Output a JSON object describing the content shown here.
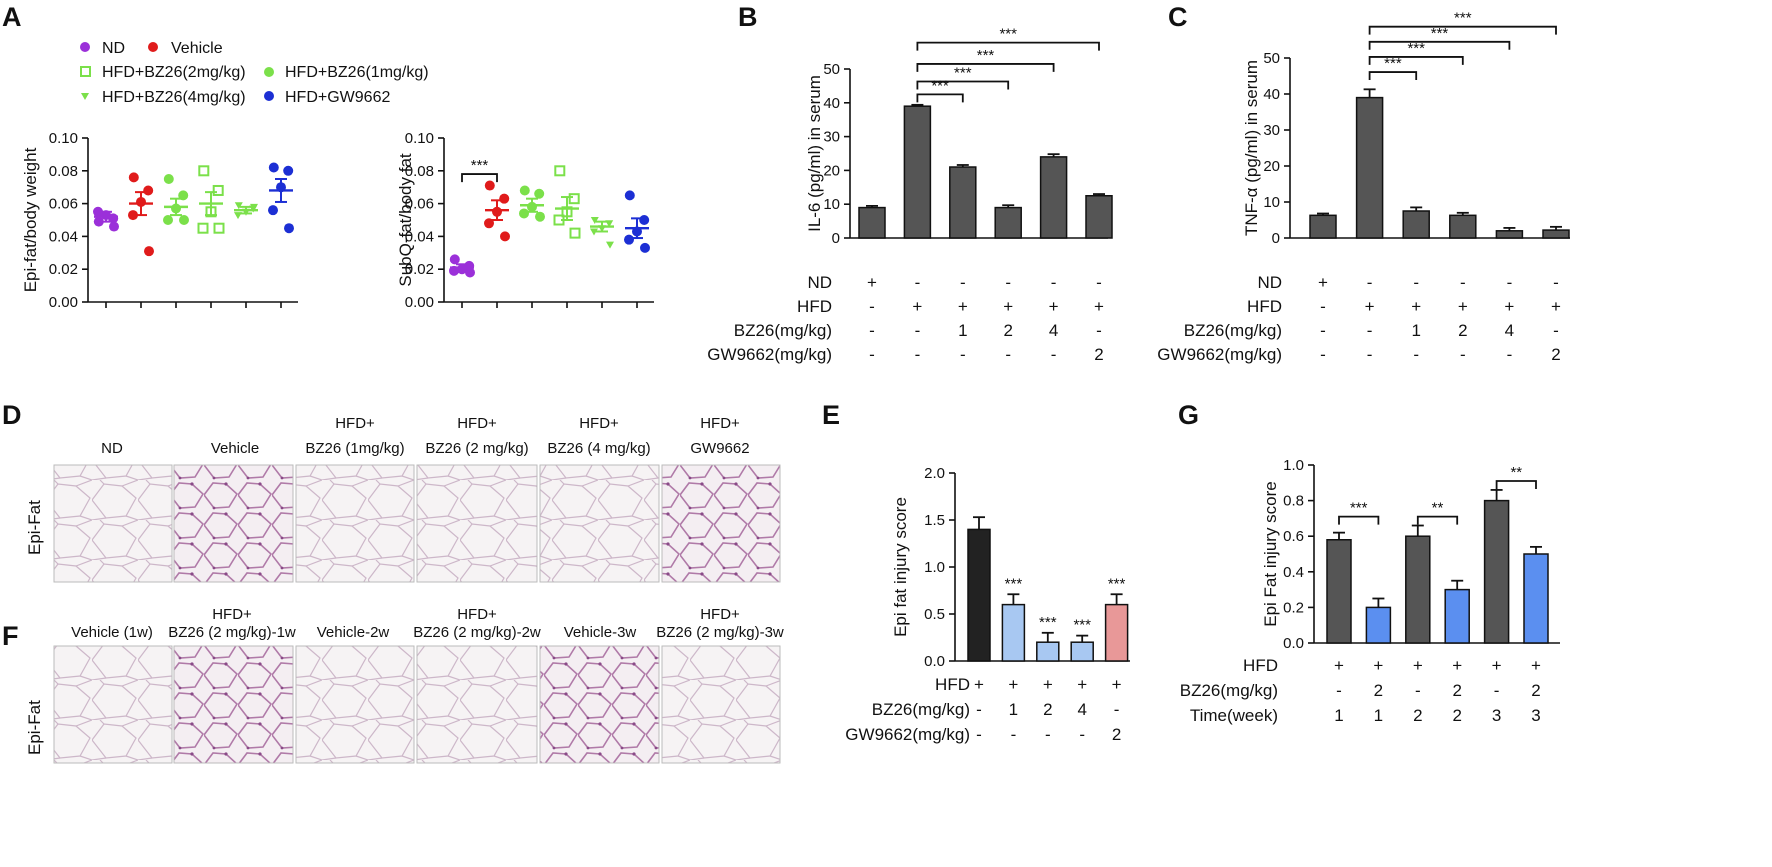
{
  "panel_labels": {
    "A": "A",
    "B": "B",
    "C": "C",
    "D": "D",
    "E": "E",
    "F": "F",
    "G": "G"
  },
  "legend": [
    {
      "label": "ND",
      "color": "#9b30d9",
      "marker": "circle"
    },
    {
      "label": "Vehicle",
      "color": "#e01b1b",
      "marker": "circle"
    },
    {
      "label": "HFD+BZ26(2mg/kg)",
      "color": "#7be04a",
      "marker": "square-open"
    },
    {
      "label": "HFD+BZ26(1mg/kg)",
      "color": "#7be04a",
      "marker": "circle"
    },
    {
      "label": "HFD+BZ26(4mg/kg)",
      "color": "#7be04a",
      "marker": "triangle-down"
    },
    {
      "label": "HFD+GW9662",
      "color": "#1c2fd4",
      "marker": "circle"
    }
  ],
  "histology_d": {
    "row_label": "Epi-Fat",
    "columns": [
      {
        "l1": "",
        "l2": "ND"
      },
      {
        "l1": "",
        "l2": "Vehicle"
      },
      {
        "l1": "HFD+",
        "l2": "BZ26 (1mg/kg)"
      },
      {
        "l1": "HFD+",
        "l2": "BZ26 (2 mg/kg)"
      },
      {
        "l1": "HFD+",
        "l2": "BZ26 (4 mg/kg)"
      },
      {
        "l1": "HFD+",
        "l2": "GW9662"
      }
    ]
  },
  "histology_f": {
    "row_label": "Epi-Fat",
    "columns": [
      {
        "l1": "",
        "l2": "Vehicle (1w)"
      },
      {
        "l1": "HFD+",
        "l2": "BZ26 (2 mg/kg)-1w"
      },
      {
        "l1": "",
        "l2": "Vehicle-2w"
      },
      {
        "l1": "HFD+",
        "l2": "BZ26 (2 mg/kg)-2w"
      },
      {
        "l1": "",
        "l2": "Vehicle-3w"
      },
      {
        "l1": "HFD+",
        "l2": "BZ26 (2 mg/kg)-3w"
      }
    ]
  },
  "chart_data": [
    {
      "id": "A1",
      "type": "scatter",
      "ylabel": "Epi-fat/body weight",
      "ylim": [
        0,
        0.1
      ],
      "yticks": [
        "0.00",
        "0.02",
        "0.04",
        "0.06",
        "0.08",
        "0.10"
      ],
      "groups": [
        {
          "color": "#9b30d9",
          "marker": "circle",
          "mean": 0.052,
          "sem": 0.003,
          "points": [
            0.049,
            0.051,
            0.053,
            0.055,
            0.046
          ]
        },
        {
          "color": "#e01b1b",
          "marker": "circle",
          "mean": 0.06,
          "sem": 0.007,
          "points": [
            0.076,
            0.068,
            0.061,
            0.053,
            0.031
          ]
        },
        {
          "color": "#7be04a",
          "marker": "circle",
          "mean": 0.058,
          "sem": 0.005,
          "points": [
            0.075,
            0.065,
            0.057,
            0.05,
            0.05
          ]
        },
        {
          "color": "#7be04a",
          "marker": "square-open",
          "mean": 0.06,
          "sem": 0.007,
          "points": [
            0.08,
            0.068,
            0.055,
            0.045,
            0.045
          ]
        },
        {
          "color": "#7be04a",
          "marker": "triangle-down",
          "mean": 0.056,
          "sem": 0.002,
          "points": [
            0.059,
            0.057,
            0.055,
            0.053,
            0.058
          ]
        },
        {
          "color": "#1c2fd4",
          "marker": "circle",
          "mean": 0.068,
          "sem": 0.007,
          "points": [
            0.082,
            0.08,
            0.07,
            0.056,
            0.045
          ]
        }
      ],
      "annotations": []
    },
    {
      "id": "A2",
      "type": "scatter",
      "ylabel": "SubQ-fat/body fat",
      "ylim": [
        0,
        0.1
      ],
      "yticks": [
        "0.00",
        "0.02",
        "0.04",
        "0.06",
        "0.08",
        "0.10"
      ],
      "groups": [
        {
          "color": "#9b30d9",
          "marker": "circle",
          "mean": 0.021,
          "sem": 0.002,
          "points": [
            0.026,
            0.022,
            0.02,
            0.019,
            0.018
          ]
        },
        {
          "color": "#e01b1b",
          "marker": "circle",
          "mean": 0.056,
          "sem": 0.006,
          "points": [
            0.071,
            0.063,
            0.055,
            0.048,
            0.04
          ]
        },
        {
          "color": "#7be04a",
          "marker": "circle",
          "mean": 0.059,
          "sem": 0.004,
          "points": [
            0.068,
            0.066,
            0.058,
            0.054,
            0.052
          ]
        },
        {
          "color": "#7be04a",
          "marker": "square-open",
          "mean": 0.057,
          "sem": 0.007,
          "points": [
            0.08,
            0.063,
            0.055,
            0.05,
            0.042
          ]
        },
        {
          "color": "#7be04a",
          "marker": "triangle-down",
          "mean": 0.046,
          "sem": 0.003,
          "points": [
            0.05,
            0.048,
            0.045,
            0.043,
            0.035
          ]
        },
        {
          "color": "#1c2fd4",
          "marker": "circle",
          "mean": 0.045,
          "sem": 0.006,
          "points": [
            0.065,
            0.05,
            0.043,
            0.038,
            0.033
          ]
        }
      ],
      "annotations": [
        {
          "from": 0,
          "to": 1,
          "level": 0.078,
          "text": "***"
        }
      ]
    },
    {
      "id": "B",
      "type": "bar",
      "ylabel": "IL-6 (pg/ml) in serum",
      "ylim": [
        0,
        50
      ],
      "yticks": [
        "0",
        "10",
        "20",
        "30",
        "40",
        "50"
      ],
      "values": [
        9,
        39,
        21,
        9,
        24,
        12.5
      ],
      "errors": [
        0.5,
        0.4,
        0.6,
        0.7,
        0.8,
        0.5
      ],
      "colors": [
        "#555555",
        "#555555",
        "#555555",
        "#555555",
        "#555555",
        "#555555"
      ],
      "annotations": [
        {
          "from": 1,
          "to": 2,
          "level": 42.5,
          "text": "***"
        },
        {
          "from": 1,
          "to": 3,
          "level": 46.3,
          "text": "***"
        },
        {
          "from": 1,
          "to": 4,
          "level": 51.5,
          "text": "***"
        },
        {
          "from": 1,
          "to": 5,
          "level": 57.8,
          "text": "***"
        }
      ],
      "treatment_rows": [
        {
          "name": "ND",
          "values": [
            "+",
            "-",
            "-",
            "-",
            "-",
            "-"
          ]
        },
        {
          "name": "HFD",
          "values": [
            "-",
            "+",
            "+",
            "+",
            "+",
            "+"
          ]
        },
        {
          "name": "BZ26(mg/kg)",
          "values": [
            "-",
            "-",
            "1",
            "2",
            "4",
            "-"
          ]
        },
        {
          "name": "GW9662(mg/kg)",
          "values": [
            "-",
            "-",
            "-",
            "-",
            "-",
            "2"
          ]
        }
      ]
    },
    {
      "id": "C",
      "type": "bar",
      "ylabel": "TNF-α (pg/ml) in serum",
      "ylim": [
        0,
        50
      ],
      "yticks": [
        "0",
        "10",
        "20",
        "30",
        "40",
        "50"
      ],
      "values": [
        6.3,
        39,
        7.5,
        6.3,
        2,
        2.2
      ],
      "errors": [
        0.5,
        2.3,
        1.0,
        0.7,
        0.8,
        0.9
      ],
      "colors": [
        "#555555",
        "#555555",
        "#555555",
        "#555555",
        "#555555",
        "#555555"
      ],
      "annotations": [
        {
          "from": 1,
          "to": 2,
          "level": 46.1,
          "text": "***"
        },
        {
          "from": 1,
          "to": 3,
          "level": 50.3,
          "text": "***"
        },
        {
          "from": 1,
          "to": 4,
          "level": 54.5,
          "text": "***"
        },
        {
          "from": 1,
          "to": 5,
          "level": 58.7,
          "text": "***"
        }
      ],
      "treatment_rows": [
        {
          "name": "ND",
          "values": [
            "+",
            "-",
            "-",
            "-",
            "-",
            "-"
          ]
        },
        {
          "name": "HFD",
          "values": [
            "-",
            "+",
            "+",
            "+",
            "+",
            "+"
          ]
        },
        {
          "name": "BZ26(mg/kg)",
          "values": [
            "-",
            "-",
            "1",
            "2",
            "4",
            "-"
          ]
        },
        {
          "name": "GW9662(mg/kg)",
          "values": [
            "-",
            "-",
            "-",
            "-",
            "-",
            "2"
          ]
        }
      ]
    },
    {
      "id": "E",
      "type": "bar",
      "ylabel": "Epi fat injury score",
      "ylim": [
        0,
        2
      ],
      "yticks": [
        "0.0",
        "0.5",
        "1.0",
        "1.5",
        "2.0"
      ],
      "values": [
        1.4,
        0.6,
        0.2,
        0.2,
        0.6
      ],
      "errors": [
        0.13,
        0.11,
        0.1,
        0.07,
        0.11
      ],
      "colors": [
        "#222222",
        "#a8c8f2",
        "#a8c8f2",
        "#a8c8f2",
        "#e89898"
      ],
      "star_labels": [
        "",
        "***",
        "***",
        "***",
        "***"
      ],
      "annotations": [],
      "treatment_rows": [
        {
          "name": "HFD",
          "values": [
            "+",
            "+",
            "+",
            "+",
            "+"
          ]
        },
        {
          "name": "BZ26(mg/kg)",
          "values": [
            "-",
            "1",
            "2",
            "4",
            "-"
          ]
        },
        {
          "name": "GW9662(mg/kg)",
          "values": [
            "-",
            "-",
            "-",
            "-",
            "2"
          ]
        }
      ]
    },
    {
      "id": "G",
      "type": "bar",
      "ylabel": "Epi Fat injury score",
      "ylim": [
        0,
        1
      ],
      "yticks": [
        "0.0",
        "0.2",
        "0.4",
        "0.6",
        "0.8",
        "1.0"
      ],
      "values": [
        0.58,
        0.2,
        0.6,
        0.3,
        0.8,
        0.5
      ],
      "errors": [
        0.04,
        0.05,
        0.06,
        0.05,
        0.06,
        0.04
      ],
      "colors": [
        "#555555",
        "#5b8ff0",
        "#555555",
        "#5b8ff0",
        "#555555",
        "#5b8ff0"
      ],
      "annotations": [
        {
          "from": 0,
          "to": 1,
          "level": 0.71,
          "text": "***"
        },
        {
          "from": 2,
          "to": 3,
          "level": 0.71,
          "text": "**"
        },
        {
          "from": 4,
          "to": 5,
          "level": 0.91,
          "text": "**"
        }
      ],
      "treatment_rows": [
        {
          "name": "HFD",
          "values": [
            "+",
            "+",
            "+",
            "+",
            "+",
            "+"
          ]
        },
        {
          "name": "BZ26(mg/kg)",
          "values": [
            "-",
            "2",
            "-",
            "2",
            "-",
            "2"
          ]
        },
        {
          "name": "Time(week)",
          "values": [
            "1",
            "1",
            "2",
            "2",
            "3",
            "3"
          ]
        }
      ]
    }
  ]
}
